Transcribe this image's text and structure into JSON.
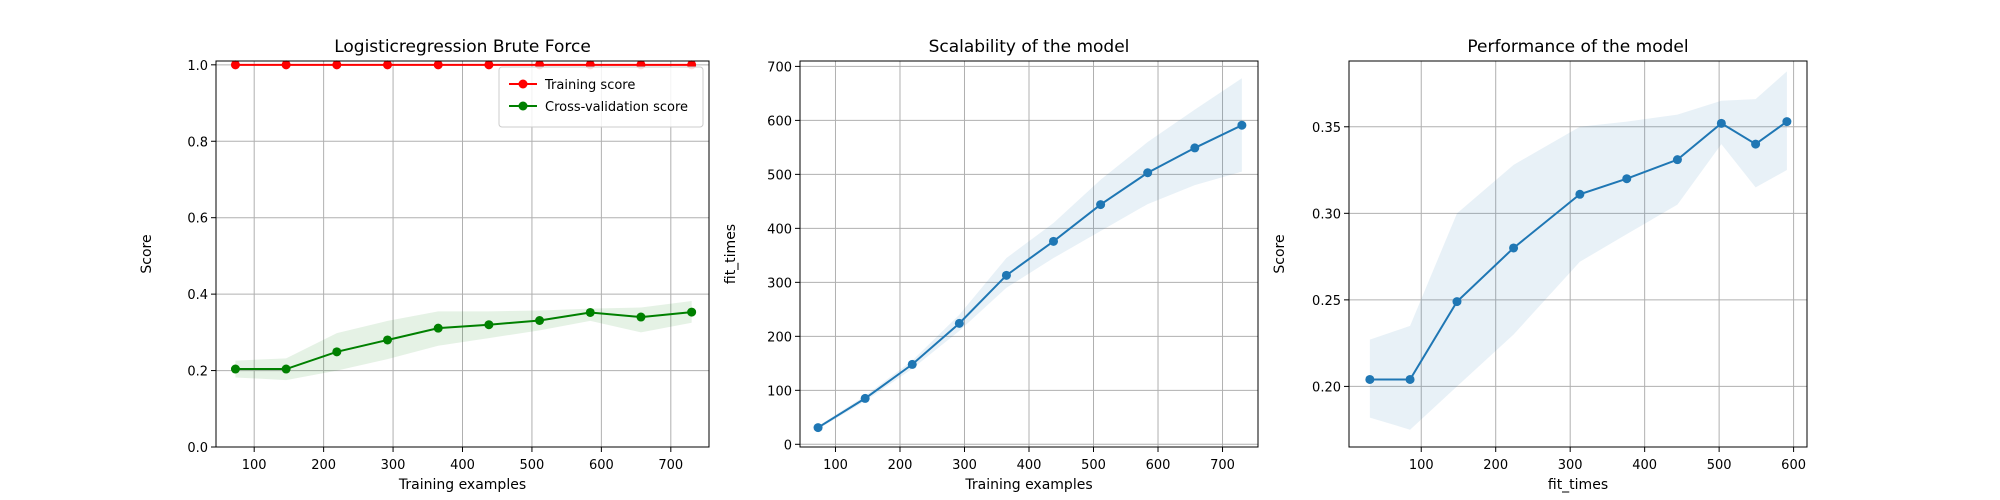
{
  "chart_data": [
    {
      "type": "line",
      "title": "Logisticregression Brute Force",
      "xlabel": "Training examples",
      "ylabel": "Score",
      "xlim": [
        45,
        755
      ],
      "ylim": [
        0.0,
        1.01
      ],
      "xticks": [
        100,
        200,
        300,
        400,
        500,
        600,
        700
      ],
      "yticks": [
        0.0,
        0.2,
        0.4,
        0.6,
        0.8,
        1.0
      ],
      "ytick_labels": [
        "0.0",
        "0.2",
        "0.4",
        "0.6",
        "0.8",
        "1.0"
      ],
      "grid": true,
      "legend": "top-right",
      "x": [
        73,
        146,
        219,
        292,
        365,
        438,
        511,
        584,
        657,
        730
      ],
      "series": [
        {
          "name": "Training score",
          "color": "#ff0000",
          "values": [
            1.0,
            1.0,
            1.0,
            1.0,
            1.0,
            1.0,
            1.0,
            1.0,
            1.0,
            1.0
          ],
          "lower": [
            0.997,
            0.997,
            0.997,
            0.997,
            0.997,
            0.997,
            0.997,
            0.997,
            0.997,
            0.997
          ],
          "upper": [
            1.0,
            1.0,
            1.0,
            1.0,
            1.0,
            1.0,
            1.0,
            1.0,
            1.0,
            1.0
          ]
        },
        {
          "name": "Cross-validation score",
          "color": "#008000",
          "values": [
            0.204,
            0.204,
            0.249,
            0.28,
            0.311,
            0.32,
            0.331,
            0.352,
            0.34,
            0.353
          ],
          "lower": [
            0.182,
            0.175,
            0.2,
            0.23,
            0.265,
            0.285,
            0.305,
            0.33,
            0.3,
            0.325
          ],
          "upper": [
            0.226,
            0.232,
            0.298,
            0.33,
            0.355,
            0.355,
            0.357,
            0.362,
            0.365,
            0.382
          ]
        }
      ]
    },
    {
      "type": "line",
      "title": "Scalability of the model",
      "xlabel": "Training examples",
      "ylabel": "fit_times",
      "xlim": [
        45,
        755
      ],
      "ylim": [
        -5,
        710
      ],
      "xticks": [
        100,
        200,
        300,
        400,
        500,
        600,
        700
      ],
      "yticks": [
        0,
        100,
        200,
        300,
        400,
        500,
        600,
        700
      ],
      "ytick_labels": [
        "0",
        "100",
        "200",
        "300",
        "400",
        "500",
        "600",
        "700"
      ],
      "grid": true,
      "x": [
        73,
        146,
        219,
        292,
        365,
        438,
        511,
        584,
        657,
        730
      ],
      "series": [
        {
          "color": "#1f77b4",
          "values": [
            31,
            85,
            148,
            224,
            313,
            376,
            444,
            503,
            549,
            591
          ],
          "lower": [
            28,
            80,
            140,
            210,
            290,
            345,
            395,
            445,
            480,
            505
          ],
          "upper": [
            34,
            90,
            155,
            240,
            345,
            410,
            490,
            560,
            620,
            678
          ]
        }
      ]
    },
    {
      "type": "line",
      "title": "Performance of the model",
      "xlabel": "fit_times",
      "ylabel": "Score",
      "xlim": [
        3,
        618
      ],
      "ylim": [
        0.165,
        0.388
      ],
      "xticks": [
        100,
        200,
        300,
        400,
        500,
        600
      ],
      "yticks": [
        0.2,
        0.25,
        0.3,
        0.35
      ],
      "ytick_labels": [
        "0.20",
        "0.25",
        "0.30",
        "0.35"
      ],
      "grid": true,
      "x": [
        31,
        85,
        148,
        224,
        313,
        376,
        444,
        503,
        549,
        591
      ],
      "series": [
        {
          "color": "#1f77b4",
          "values": [
            0.204,
            0.204,
            0.249,
            0.28,
            0.311,
            0.32,
            0.331,
            0.352,
            0.34,
            0.353
          ],
          "lower": [
            0.182,
            0.175,
            0.2,
            0.23,
            0.272,
            0.288,
            0.305,
            0.34,
            0.315,
            0.325
          ],
          "upper": [
            0.227,
            0.235,
            0.3,
            0.328,
            0.35,
            0.353,
            0.357,
            0.365,
            0.366,
            0.382
          ]
        }
      ]
    }
  ]
}
